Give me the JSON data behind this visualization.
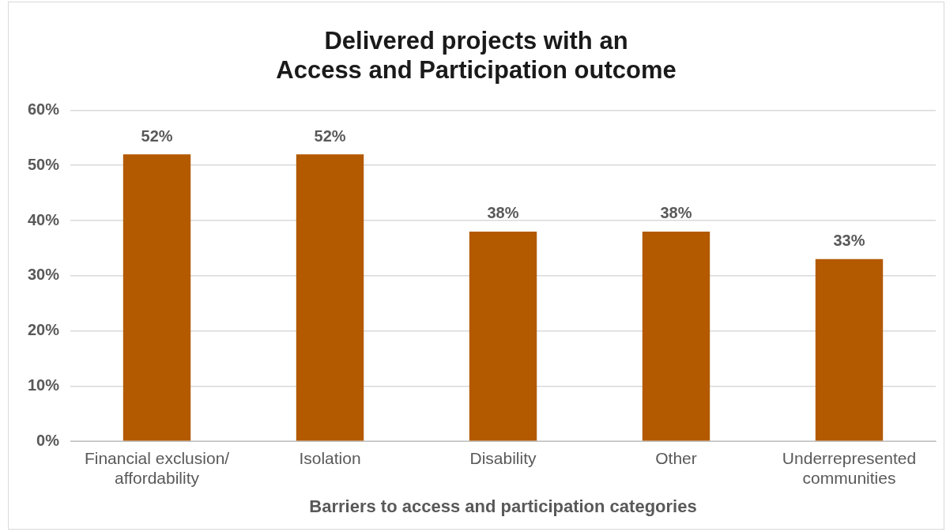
{
  "chart_data": {
    "type": "bar",
    "title": "Delivered projects with an\nAccess and Participation outcome",
    "xlabel": "Barriers to access and participation categories",
    "categories": [
      "Financial exclusion/ affordability",
      "Isolation",
      "Disability",
      "Other",
      "Underrepresented communities"
    ],
    "values": [
      52,
      52,
      38,
      38,
      33
    ],
    "color": "#b35900",
    "value_labels": [
      "52%",
      "52%",
      "38%",
      "38%",
      "33%"
    ],
    "ylim": [
      0,
      60
    ],
    "yticks": [
      {
        "value": 0,
        "label": "0%"
      },
      {
        "value": 10,
        "label": "10%"
      },
      {
        "value": 20,
        "label": "20%"
      },
      {
        "value": 30,
        "label": "30%"
      },
      {
        "value": 40,
        "label": "40%"
      },
      {
        "value": 50,
        "label": "50%"
      },
      {
        "value": 60,
        "label": "60%"
      }
    ],
    "grid": "y",
    "legend": false
  }
}
